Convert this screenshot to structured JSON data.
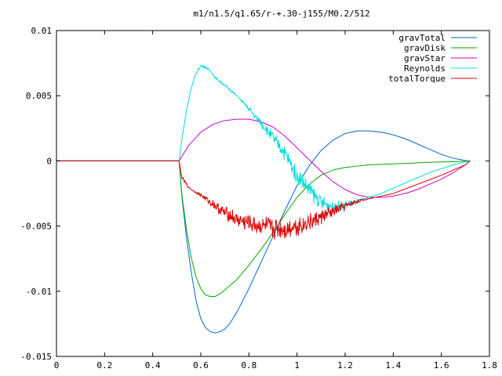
{
  "chart_data": {
    "type": "line",
    "title": "m1/n1.5/q1.65/r-+.30-j155/M0.2/512",
    "xlabel": "",
    "ylabel": "",
    "xlim": [
      0,
      1.8
    ],
    "ylim": [
      -0.015,
      0.01
    ],
    "xticks": [
      "0",
      "0.2",
      "0.4",
      "0.6",
      "0.8",
      "1",
      "1.2",
      "1.4",
      "1.6",
      "1.8"
    ],
    "yticks": [
      "0.01",
      "0.005",
      "0",
      "-0.005",
      "-0.01",
      "-0.015"
    ],
    "grid": false,
    "legend_position": "top-right",
    "series": [
      {
        "name": "gravTotal",
        "color": "#0066cc",
        "noise": 0,
        "x": [
          0,
          0.51,
          0.52,
          0.54,
          0.56,
          0.58,
          0.6,
          0.62,
          0.64,
          0.66,
          0.68,
          0.7,
          0.72,
          0.75,
          0.8,
          0.85,
          0.9,
          0.95,
          1.0,
          1.05,
          1.1,
          1.15,
          1.2,
          1.25,
          1.3,
          1.35,
          1.4,
          1.45,
          1.5,
          1.55,
          1.6,
          1.65,
          1.7,
          1.72
        ],
        "y": [
          0,
          0,
          -0.0025,
          -0.0058,
          -0.0085,
          -0.0107,
          -0.0121,
          -0.0128,
          -0.0131,
          -0.0132,
          -0.0131,
          -0.0129,
          -0.0125,
          -0.0116,
          -0.0098,
          -0.0078,
          -0.0058,
          -0.0038,
          -0.0019,
          -0.0004,
          0.0008,
          0.0016,
          0.0021,
          0.0023,
          0.0023,
          0.0022,
          0.002,
          0.0017,
          0.0013,
          0.0009,
          0.0005,
          0.0002,
          3e-05,
          0
        ]
      },
      {
        "name": "gravDisk",
        "color": "#00aa00",
        "noise": 0,
        "x": [
          0,
          0.51,
          0.52,
          0.54,
          0.56,
          0.58,
          0.6,
          0.62,
          0.64,
          0.66,
          0.68,
          0.7,
          0.75,
          0.8,
          0.85,
          0.9,
          0.95,
          1.0,
          1.05,
          1.1,
          1.15,
          1.2,
          1.25,
          1.3,
          1.4,
          1.5,
          1.6,
          1.7,
          1.72
        ],
        "y": [
          0,
          0,
          -0.0024,
          -0.0052,
          -0.0074,
          -0.0089,
          -0.0098,
          -0.0103,
          -0.0104,
          -0.0104,
          -0.0102,
          -0.0099,
          -0.0091,
          -0.008,
          -0.0068,
          -0.0055,
          -0.0041,
          -0.0028,
          -0.0018,
          -0.0011,
          -0.0007,
          -0.0005,
          -0.0004,
          -0.0003,
          -0.00023,
          -0.00015,
          -8e-05,
          -3e-05,
          0
        ]
      },
      {
        "name": "gravStar",
        "color": "#cc00cc",
        "noise": 0,
        "x": [
          0,
          0.51,
          0.55,
          0.6,
          0.65,
          0.7,
          0.75,
          0.8,
          0.85,
          0.9,
          0.95,
          1.0,
          1.05,
          1.1,
          1.15,
          1.2,
          1.25,
          1.3,
          1.35,
          1.4,
          1.45,
          1.5,
          1.55,
          1.6,
          1.65,
          1.7,
          1.72
        ],
        "y": [
          0,
          0,
          0.0012,
          0.0022,
          0.0028,
          0.0031,
          0.0032,
          0.0032,
          0.003,
          0.0026,
          0.0019,
          0.001,
          0.0001,
          -0.0008,
          -0.0016,
          -0.0022,
          -0.0026,
          -0.0028,
          -0.0028,
          -0.0027,
          -0.0025,
          -0.0022,
          -0.0018,
          -0.0014,
          -0.0009,
          -0.0003,
          0
        ]
      },
      {
        "name": "Reynolds",
        "color": "#00dddd",
        "noise": 0.0007,
        "noise_range": [
          0.75,
          1.3
        ],
        "x": [
          0,
          0.51,
          0.52,
          0.54,
          0.56,
          0.58,
          0.6,
          0.62,
          0.64,
          0.66,
          0.7,
          0.75,
          0.8,
          0.85,
          0.9,
          0.95,
          1.0,
          1.05,
          1.1,
          1.15,
          1.2,
          1.25,
          1.3,
          1.35,
          1.4,
          1.45,
          1.5,
          1.55,
          1.6,
          1.65,
          1.7,
          1.72
        ],
        "y": [
          0,
          0,
          0.0015,
          0.0038,
          0.0056,
          0.0067,
          0.0073,
          0.0072,
          0.0069,
          0.0064,
          0.0058,
          0.005,
          0.004,
          0.0029,
          0.0018,
          0.0006,
          -0.0011,
          -0.0022,
          -0.0032,
          -0.0035,
          -0.0034,
          -0.0031,
          -0.0028,
          -0.0025,
          -0.0021,
          -0.0017,
          -0.0013,
          -0.0009,
          -0.0006,
          -0.0003,
          -8e-05,
          0
        ]
      },
      {
        "name": "totalTorque",
        "color": "#dd0000",
        "noise": 0.0009,
        "noise_range": [
          0.55,
          1.3
        ],
        "x": [
          0,
          0.51,
          0.52,
          0.54,
          0.56,
          0.58,
          0.6,
          0.65,
          0.7,
          0.75,
          0.8,
          0.85,
          0.9,
          0.95,
          1.0,
          1.05,
          1.1,
          1.15,
          1.2,
          1.25,
          1.3,
          1.35,
          1.4,
          1.5,
          1.6,
          1.7,
          1.72
        ],
        "y": [
          0,
          0,
          -0.0012,
          -0.0018,
          -0.0022,
          -0.0024,
          -0.0026,
          -0.0033,
          -0.004,
          -0.0045,
          -0.0048,
          -0.005,
          -0.0052,
          -0.0052,
          -0.005,
          -0.0047,
          -0.0043,
          -0.0039,
          -0.0035,
          -0.0031,
          -0.0029,
          -0.0027,
          -0.0025,
          -0.0018,
          -0.0011,
          -0.0003,
          0
        ]
      }
    ]
  }
}
